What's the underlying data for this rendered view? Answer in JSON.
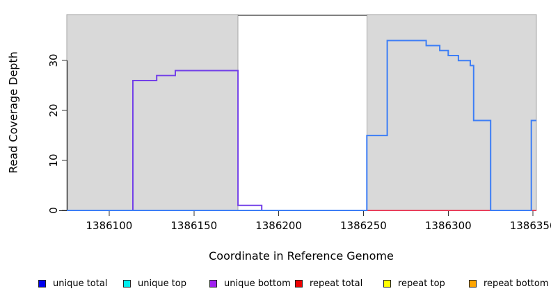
{
  "figure": {
    "x_axis_title": "Coordinate in Reference Genome",
    "y_axis_title": "Read Coverage Depth"
  },
  "chart_data": {
    "type": "line",
    "subtype": "step-coverage",
    "title": "",
    "xlabel": "Coordinate in Reference Genome",
    "ylabel": "Read Coverage Depth",
    "xlim": [
      1386075,
      1386352
    ],
    "ylim": [
      0,
      39.2
    ],
    "x_ticks": [
      1386100,
      1386150,
      1386200,
      1386250,
      1386300,
      1386350
    ],
    "y_ticks": [
      0,
      10,
      20,
      30
    ],
    "grid": false,
    "legend_position": "bottom",
    "shaded_regions": [
      {
        "x0": 1386075,
        "x1": 1386176,
        "fill": "#d9d9d9",
        "stroke": "#a6a6a6"
      },
      {
        "x0": 1386252,
        "x1": 1386352,
        "fill": "#d9d9d9",
        "stroke": "#a6a6a6"
      }
    ],
    "top_border_segment": {
      "x0": 1386176,
      "x1": 1386252,
      "color": "#808080"
    },
    "series": [
      {
        "name": "baseline-green-segment",
        "color": "#8fd98f",
        "width": 2,
        "points": [
          [
            1386114,
            0
          ],
          [
            1386176,
            0
          ]
        ]
      },
      {
        "name": "repeat-total-baseline",
        "color": "#e8415c",
        "width": 2,
        "points": [
          [
            1386252,
            0
          ],
          [
            1386352,
            0
          ]
        ]
      },
      {
        "name": "unique-bottom",
        "color": "#7340e8",
        "width": 2,
        "points": [
          [
            1386075,
            0
          ],
          [
            1386114,
            0
          ],
          [
            1386114,
            26
          ],
          [
            1386128,
            26
          ],
          [
            1386128,
            27
          ],
          [
            1386139,
            27
          ],
          [
            1386139,
            28
          ],
          [
            1386176,
            28
          ],
          [
            1386176,
            1
          ],
          [
            1386190,
            1
          ],
          [
            1386190,
            0
          ],
          [
            1386252,
            0
          ]
        ]
      },
      {
        "name": "unique-total",
        "color": "#3d7ef6",
        "width": 2,
        "points": [
          [
            1386075,
            0
          ],
          [
            1386252,
            0
          ],
          [
            1386252,
            15
          ],
          [
            1386264,
            15
          ],
          [
            1386264,
            34
          ],
          [
            1386287,
            34
          ],
          [
            1386287,
            33
          ],
          [
            1386295,
            33
          ],
          [
            1386295,
            32
          ],
          [
            1386300,
            32
          ],
          [
            1386300,
            31
          ],
          [
            1386306,
            31
          ],
          [
            1386306,
            30
          ],
          [
            1386313,
            30
          ],
          [
            1386313,
            29
          ],
          [
            1386315,
            29
          ],
          [
            1386315,
            18
          ],
          [
            1386325,
            18
          ],
          [
            1386325,
            0
          ],
          [
            1386349,
            0
          ],
          [
            1386349,
            18
          ],
          [
            1386352,
            18
          ]
        ]
      }
    ]
  },
  "legend": {
    "items": [
      {
        "label": "unique total",
        "color": "#0000ee"
      },
      {
        "label": "unique top",
        "color": "#00eeee"
      },
      {
        "label": "unique bottom",
        "color": "#a020f0"
      },
      {
        "label": "repeat total",
        "color": "#ee0000"
      },
      {
        "label": "repeat top",
        "color": "#ffff00"
      },
      {
        "label": "repeat bottom",
        "color": "#ffa500"
      }
    ]
  }
}
